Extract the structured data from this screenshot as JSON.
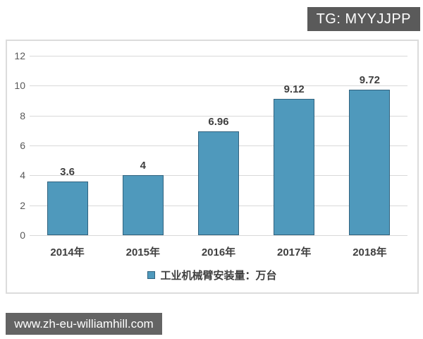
{
  "watermarks": {
    "top_badge": "TG: MYYJJPP",
    "bottom_badge": "www.zh-eu-williamhill.com"
  },
  "chart_data": {
    "type": "bar",
    "title": "",
    "xlabel": "",
    "ylabel": "",
    "categories": [
      "2014年",
      "2015年",
      "2016年",
      "2017年",
      "2018年"
    ],
    "values": [
      3.6,
      4,
      6.96,
      9.12,
      9.72
    ],
    "value_labels": [
      "3.6",
      "4",
      "6.96",
      "9.12",
      "9.72"
    ],
    "legend": "工业机械臂安装量：万台",
    "legend_position": "bottom",
    "ylim": [
      0,
      12
    ],
    "yticks": [
      0,
      2,
      4,
      6,
      8,
      10,
      12
    ],
    "grid": true,
    "colors": {
      "bar_fill": "#4f99bc",
      "bar_border": "#31637f",
      "gridline": "#d9d9d9",
      "axis_label": "#595959",
      "data_label": "#3f3f3f",
      "panel_border": "#dcdcdc",
      "top_badge_bg": "#5a5a5a",
      "bottom_badge_bg": "#646464",
      "badge_text": "#ffffff"
    }
  }
}
